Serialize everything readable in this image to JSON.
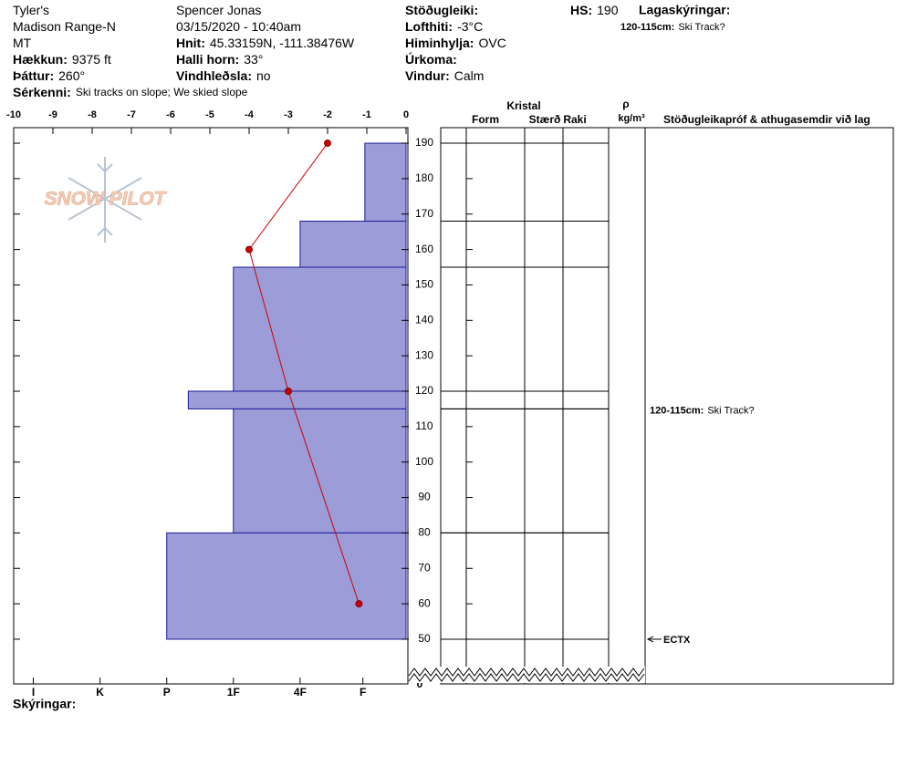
{
  "header": {
    "col1": [
      {
        "text": "Tyler's"
      },
      {
        "text": "Madison Range-N"
      },
      {
        "text": "MT"
      },
      {
        "label": "Hækkun:",
        "value": "9375 ft"
      },
      {
        "label": "Þáttur:",
        "value": "260°"
      },
      {
        "label": "Sérkenni:",
        "value": "Ski tracks on slope; We skied slope"
      }
    ],
    "col2": [
      {
        "text": "Spencer Jonas"
      },
      {
        "text": "03/15/2020 - 10:40am"
      },
      {
        "label": "Hnit:",
        "value": "45.33159N, -111.38476W"
      },
      {
        "label": "Halli horn:",
        "value": "33°"
      },
      {
        "label": "Vindhleðsla:",
        "value": "no"
      }
    ],
    "col3": [
      {
        "label": "Stöðugleiki:"
      },
      {
        "label": "Lofthiti:",
        "value": "-3°C"
      },
      {
        "label": "Himinhylja:",
        "value": "OVC"
      },
      {
        "label": "Úrkoma:"
      },
      {
        "label": "Vindur:",
        "value": "Calm"
      }
    ],
    "hs": {
      "label": "HS:",
      "value": 190
    },
    "legend_title": "Lagaskýringar:",
    "legend_items": [
      {
        "range": "120-115cm:",
        "text": "Ski Track?"
      }
    ]
  },
  "logo": "SNOW PILOT",
  "chart_data": {
    "type": "snowprofile",
    "xlim": [
      -10,
      0
    ],
    "xticks": [
      -10,
      -9,
      -8,
      -7,
      -6,
      -5,
      -4,
      -3,
      -2,
      -1,
      0
    ],
    "ylim": [
      46,
      194
    ],
    "yticks": [
      50,
      60,
      70,
      80,
      90,
      100,
      110,
      120,
      130,
      140,
      150,
      160,
      170,
      180,
      190
    ],
    "ground": 0,
    "hardness_ticks": [
      {
        "value": -9.5,
        "label": "I"
      },
      {
        "value": -7.8,
        "label": "K"
      },
      {
        "value": -6.1,
        "label": "P"
      },
      {
        "value": -4.4,
        "label": "1F"
      },
      {
        "value": -2.7,
        "label": "4F"
      },
      {
        "value": -1.1,
        "label": "F"
      }
    ],
    "layer_color": "#9c9cd8",
    "layers": [
      {
        "top": 190,
        "bottom": 168,
        "hardness": -1.05
      },
      {
        "top": 168,
        "bottom": 155,
        "hardness": -2.7
      },
      {
        "top": 155,
        "bottom": 120,
        "hardness": -4.4
      },
      {
        "top": 120,
        "bottom": 115,
        "hardness": -5.55,
        "comment": {
          "range": "120-115cm:",
          "text": "Ski Track?"
        }
      },
      {
        "top": 115,
        "bottom": 80,
        "hardness": -4.4
      },
      {
        "top": 80,
        "bottom": 50,
        "hardness": -6.1
      }
    ],
    "temperature": {
      "color": "#cc0000",
      "x": [
        -2,
        -4,
        -3,
        -1.2
      ],
      "y": [
        190,
        160,
        120,
        60
      ]
    },
    "tests": [
      {
        "height": 50,
        "label": "ECTX"
      }
    ],
    "columns": {
      "crystal": "Kristal",
      "form": "Form",
      "size": "Stærð",
      "moisture": "Raki",
      "rho": "ρ",
      "density_unit": "kg/m³",
      "tests": "Stöðugleikapróf & athugasemdir við lag"
    },
    "footer": "Skýringar:"
  }
}
